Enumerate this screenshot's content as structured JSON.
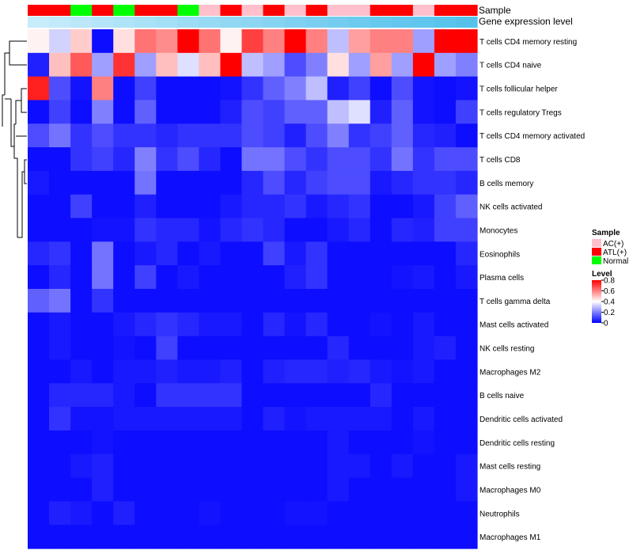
{
  "chart_data": {
    "type": "heatmap",
    "title": "",
    "annotation_tracks": [
      "Sample",
      "Gene expression level"
    ],
    "rows": [
      "T cells CD4 memory resting",
      "T cells CD4 naive",
      "T cells follicular helper",
      "T cells regulatory  Tregs",
      "T cells CD4 memory activated",
      "T cells CD8",
      "B cells memory",
      "NK cells activated",
      "Monocytes",
      "Eosinophils",
      "Plasma cells",
      "T cells gamma delta",
      "Mast cells activated",
      "NK cells resting",
      "Macrophages M2",
      "B cells naive",
      "Dendritic cells activated",
      "Dendritic cells resting",
      "Mast cells resting",
      "Macrophages M0",
      "Neutrophils",
      "Macrophages M1"
    ],
    "sample_groups": [
      "ATL(+)",
      "ATL(+)",
      "Normal",
      "ATL(+)",
      "Normal",
      "ATL(+)",
      "ATL(+)",
      "Normal",
      "AC(+)",
      "ATL(+)",
      "AC(+)",
      "ATL(+)",
      "AC(+)",
      "ATL(+)",
      "AC(+)",
      "AC(+)",
      "ATL(+)",
      "ATL(+)",
      "AC(+)",
      "ATL(+)",
      "ATL(+)"
    ],
    "gene_expression_level": [
      0.05,
      0.1,
      0.15,
      0.2,
      0.25,
      0.3,
      0.35,
      0.4,
      0.45,
      0.5,
      0.55,
      0.6,
      0.65,
      0.7,
      0.75,
      0.8,
      0.85,
      0.9,
      0.92,
      0.96,
      1.0
    ],
    "values": [
      [
        0.42,
        0.33,
        0.48,
        0.02,
        0.45,
        0.62,
        0.58,
        0.8,
        0.62,
        0.42,
        0.7,
        0.6,
        0.8,
        0.6,
        0.3,
        0.55,
        0.6,
        0.6,
        0.25,
        0.8,
        0.8
      ],
      [
        0.05,
        0.5,
        0.66,
        0.25,
        0.72,
        0.25,
        0.5,
        0.35,
        0.5,
        0.8,
        0.3,
        0.25,
        0.12,
        0.2,
        0.45,
        0.25,
        0.55,
        0.25,
        0.8,
        0.25,
        0.2
      ],
      [
        0.75,
        0.12,
        0.03,
        0.6,
        0.02,
        0.1,
        0.02,
        0.02,
        0.02,
        0.03,
        0.08,
        0.15,
        0.2,
        0.3,
        0.05,
        0.1,
        0.02,
        0.12,
        0.03,
        0.02,
        0.03
      ],
      [
        0.02,
        0.1,
        0.02,
        0.2,
        0.02,
        0.15,
        0.02,
        0.02,
        0.02,
        0.05,
        0.12,
        0.1,
        0.15,
        0.15,
        0.3,
        0.35,
        0.05,
        0.15,
        0.03,
        0.02,
        0.1
      ],
      [
        0.12,
        0.18,
        0.08,
        0.12,
        0.08,
        0.08,
        0.06,
        0.08,
        0.08,
        0.08,
        0.12,
        0.1,
        0.05,
        0.12,
        0.2,
        0.08,
        0.1,
        0.15,
        0.06,
        0.05,
        0.02
      ],
      [
        0.02,
        0.02,
        0.08,
        0.1,
        0.06,
        0.2,
        0.08,
        0.12,
        0.06,
        0.02,
        0.18,
        0.18,
        0.12,
        0.08,
        0.12,
        0.12,
        0.08,
        0.18,
        0.08,
        0.12,
        0.12
      ],
      [
        0.04,
        0.02,
        0.02,
        0.02,
        0.02,
        0.18,
        0.02,
        0.02,
        0.02,
        0.02,
        0.06,
        0.12,
        0.06,
        0.1,
        0.12,
        0.12,
        0.04,
        0.06,
        0.08,
        0.08,
        0.06
      ],
      [
        0.02,
        0.02,
        0.1,
        0.02,
        0.02,
        0.05,
        0.02,
        0.02,
        0.02,
        0.04,
        0.06,
        0.06,
        0.08,
        0.04,
        0.06,
        0.08,
        0.02,
        0.02,
        0.04,
        0.1,
        0.15
      ],
      [
        0.02,
        0.02,
        0.02,
        0.03,
        0.03,
        0.08,
        0.06,
        0.06,
        0.03,
        0.06,
        0.08,
        0.06,
        0.02,
        0.02,
        0.04,
        0.06,
        0.02,
        0.06,
        0.05,
        0.1,
        0.1
      ],
      [
        0.06,
        0.08,
        0.02,
        0.18,
        0.02,
        0.04,
        0.06,
        0.02,
        0.04,
        0.02,
        0.02,
        0.1,
        0.04,
        0.08,
        0.02,
        0.02,
        0.02,
        0.02,
        0.02,
        0.02,
        0.06
      ],
      [
        0.02,
        0.06,
        0.02,
        0.18,
        0.02,
        0.1,
        0.02,
        0.04,
        0.02,
        0.02,
        0.02,
        0.02,
        0.05,
        0.08,
        0.02,
        0.02,
        0.02,
        0.03,
        0.04,
        0.02,
        0.04
      ],
      [
        0.15,
        0.18,
        0.02,
        0.08,
        0.02,
        0.02,
        0.02,
        0.02,
        0.02,
        0.02,
        0.02,
        0.02,
        0.02,
        0.02,
        0.02,
        0.02,
        0.02,
        0.02,
        0.02,
        0.02,
        0.02
      ],
      [
        0.02,
        0.04,
        0.02,
        0.02,
        0.04,
        0.06,
        0.08,
        0.06,
        0.04,
        0.04,
        0.02,
        0.06,
        0.03,
        0.06,
        0.02,
        0.02,
        0.03,
        0.02,
        0.04,
        0.02,
        0.02
      ],
      [
        0.02,
        0.04,
        0.02,
        0.02,
        0.03,
        0.02,
        0.1,
        0.02,
        0.02,
        0.02,
        0.02,
        0.02,
        0.02,
        0.02,
        0.06,
        0.02,
        0.02,
        0.02,
        0.04,
        0.05,
        0.02
      ],
      [
        0.02,
        0.02,
        0.04,
        0.02,
        0.04,
        0.04,
        0.05,
        0.04,
        0.04,
        0.05,
        0.02,
        0.05,
        0.06,
        0.06,
        0.05,
        0.06,
        0.04,
        0.03,
        0.04,
        0.02,
        0.02
      ],
      [
        0.02,
        0.06,
        0.06,
        0.06,
        0.04,
        0.02,
        0.08,
        0.08,
        0.08,
        0.08,
        0.02,
        0.02,
        0.02,
        0.02,
        0.02,
        0.02,
        0.06,
        0.02,
        0.02,
        0.02,
        0.02
      ],
      [
        0.02,
        0.08,
        0.03,
        0.03,
        0.04,
        0.04,
        0.04,
        0.04,
        0.04,
        0.04,
        0.02,
        0.05,
        0.03,
        0.04,
        0.04,
        0.04,
        0.04,
        0.02,
        0.04,
        0.02,
        0.02
      ],
      [
        0.02,
        0.02,
        0.02,
        0.03,
        0.02,
        0.02,
        0.02,
        0.02,
        0.02,
        0.02,
        0.02,
        0.02,
        0.02,
        0.02,
        0.04,
        0.02,
        0.02,
        0.02,
        0.03,
        0.02,
        0.02
      ],
      [
        0.02,
        0.02,
        0.04,
        0.05,
        0.02,
        0.02,
        0.02,
        0.02,
        0.02,
        0.02,
        0.02,
        0.02,
        0.02,
        0.02,
        0.04,
        0.04,
        0.02,
        0.04,
        0.02,
        0.02,
        0.04
      ],
      [
        0.02,
        0.02,
        0.02,
        0.05,
        0.02,
        0.02,
        0.02,
        0.02,
        0.02,
        0.02,
        0.02,
        0.02,
        0.02,
        0.02,
        0.04,
        0.02,
        0.02,
        0.02,
        0.02,
        0.02,
        0.04
      ],
      [
        0.02,
        0.05,
        0.04,
        0.02,
        0.05,
        0.02,
        0.02,
        0.02,
        0.03,
        0.02,
        0.02,
        0.02,
        0.03,
        0.03,
        0.02,
        0.02,
        0.02,
        0.02,
        0.02,
        0.02,
        0.02
      ],
      [
        0.02,
        0.02,
        0.02,
        0.02,
        0.02,
        0.02,
        0.02,
        0.02,
        0.02,
        0.02,
        0.02,
        0.02,
        0.02,
        0.02,
        0.02,
        0.02,
        0.02,
        0.02,
        0.02,
        0.02,
        0.02
      ]
    ],
    "legend_sample": {
      "title": "Sample",
      "entries": [
        {
          "label": "AC(+)",
          "color": "#ffc0cb"
        },
        {
          "label": "ATL(+)",
          "color": "#ff0000"
        },
        {
          "label": "Normal",
          "color": "#00ff00"
        }
      ]
    },
    "legend_level": {
      "title": "Level",
      "ticks": [
        "0.8",
        "0.6",
        "0.4",
        "0.2",
        "0"
      ],
      "range": [
        0,
        0.8
      ]
    },
    "colors": {
      "low": "#0000ff",
      "mid": "#ffffff",
      "high": "#ff0000",
      "expr_low": "#cdeefb",
      "expr_high": "#56c2ec"
    }
  }
}
